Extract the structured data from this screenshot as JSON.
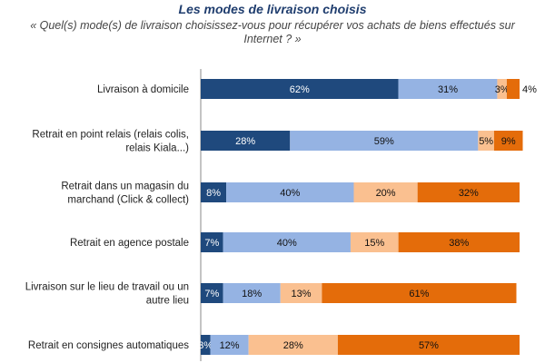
{
  "chart_data": {
    "type": "bar",
    "orientation": "horizontal-stacked-100",
    "title": "Les modes de livraison choisis",
    "subtitle": "« Quel(s) mode(s) de livraison choisissez-vous pour récupérer vos achats de biens effectués sur Internet ? »",
    "categories": [
      "Livraison à domicile",
      "Retrait en point relais (relais colis, relais Kiala...)",
      "Retrait dans un magasin du marchand (Click & collect)",
      "Retrait en agence postale",
      "Livraison sur le lieu de travail ou un autre lieu",
      "Retrait en consignes automatiques"
    ],
    "category_lines": [
      [
        "Livraison à domicile"
      ],
      [
        "Retrait en point relais (relais colis,",
        "relais Kiala...)"
      ],
      [
        "Retrait dans un magasin du",
        "marchand (Click & collect)"
      ],
      [
        "Retrait en agence postale"
      ],
      [
        "Livraison sur le lieu de travail ou un",
        "autre lieu"
      ],
      [
        "Retrait en consignes automatiques"
      ]
    ],
    "series": [
      {
        "name": "series-1",
        "color": "#1f497d",
        "values": [
          62,
          28,
          8,
          7,
          7,
          3
        ]
      },
      {
        "name": "series-2",
        "color": "#95b3e3",
        "values": [
          31,
          59,
          40,
          40,
          18,
          12
        ]
      },
      {
        "name": "series-3",
        "color": "#fac090",
        "values": [
          3,
          5,
          20,
          15,
          13,
          28
        ]
      },
      {
        "name": "series-4",
        "color": "#e46c0a",
        "values": [
          4,
          9,
          32,
          38,
          61,
          57
        ]
      }
    ],
    "xlim": [
      0,
      100
    ],
    "grid": false,
    "legend": "none"
  }
}
